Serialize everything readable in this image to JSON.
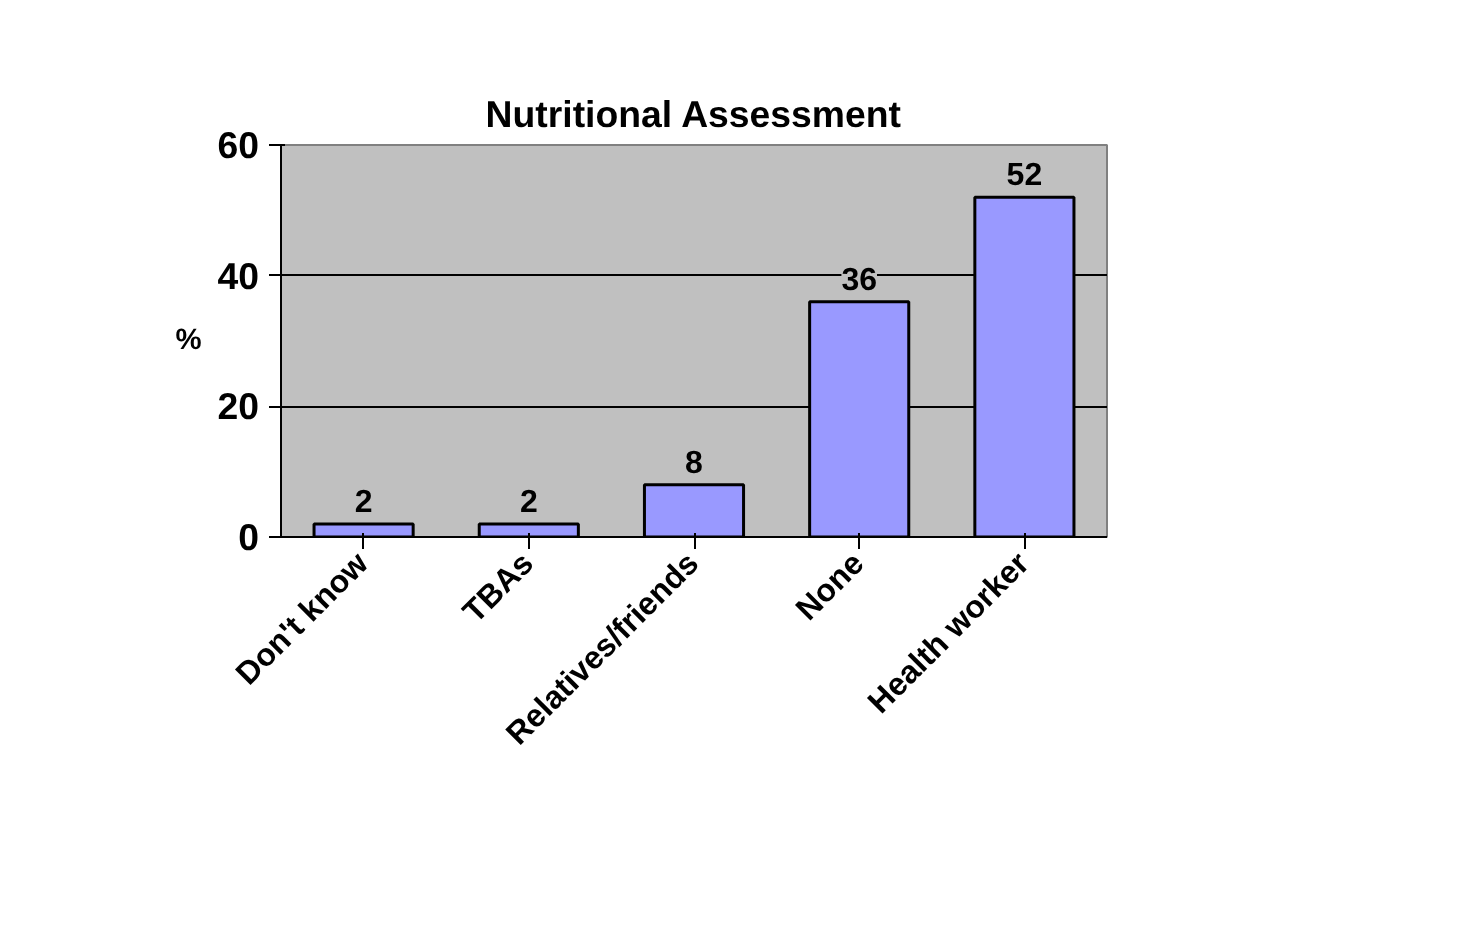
{
  "chart_data": {
    "type": "bar",
    "title": "Nutritional Assessment",
    "ylabel": "%",
    "categories": [
      "Don't know",
      "TBAs",
      "Relatives/friends",
      "None",
      "Health worker"
    ],
    "values": [
      2,
      2,
      8,
      36,
      52
    ],
    "color": "#9999ff",
    "ylim": [
      0,
      60
    ],
    "yticks": [
      0,
      20,
      40,
      60
    ],
    "grid": "y",
    "data_labels": true
  }
}
